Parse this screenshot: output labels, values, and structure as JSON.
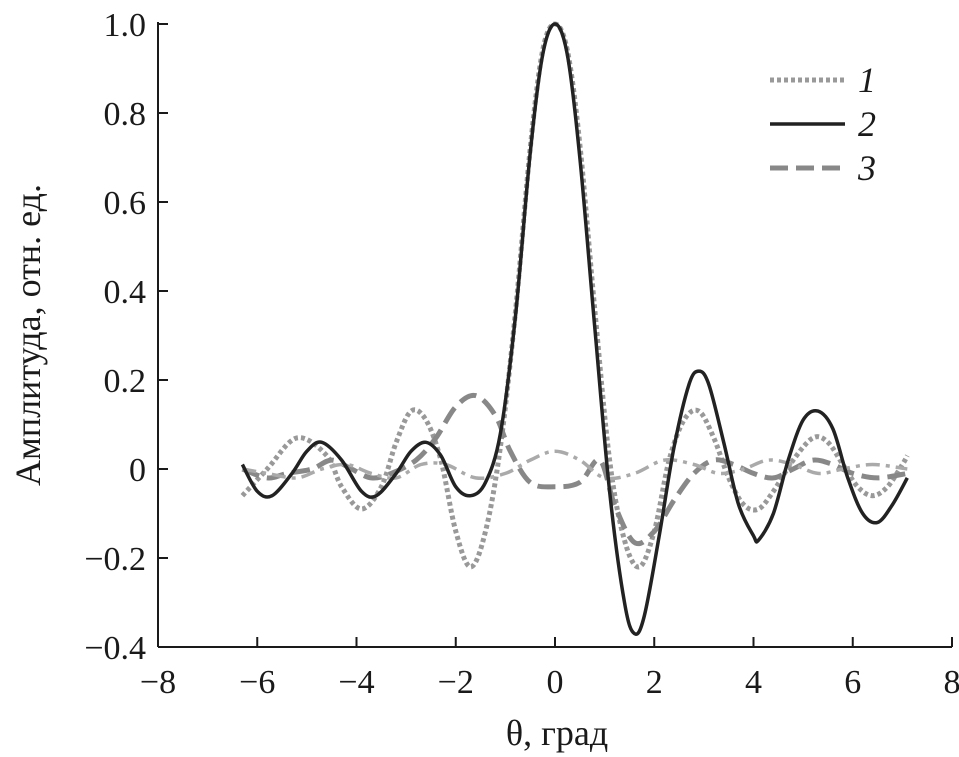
{
  "chart_data": {
    "type": "line",
    "title": "",
    "xlabel": "θ, град",
    "ylabel": "Амплитуда, отн. ед.",
    "xlim": [
      -8,
      8
    ],
    "ylim": [
      -0.4,
      1.0
    ],
    "xticks": [
      -8,
      -6,
      -4,
      -2,
      0,
      2,
      4,
      6,
      8
    ],
    "xtick_labels": [
      "−8",
      "−6",
      "−4",
      "−2",
      "0",
      "2",
      "4",
      "6",
      "8"
    ],
    "yticks": [
      -0.4,
      -0.2,
      0,
      0.2,
      0.4,
      0.6,
      0.8,
      1.0
    ],
    "ytick_labels": [
      "−0.4",
      "−0.2",
      "0",
      "0.2",
      "0.4",
      "0.6",
      "0.8",
      "1.0"
    ],
    "grid": false,
    "legend_position": "top-right",
    "series": [
      {
        "name": "1",
        "style": "dotted",
        "color": "#999999",
        "points": [
          [
            -6.3,
            -0.06
          ],
          [
            -5.8,
            0.0
          ],
          [
            -5.2,
            0.07
          ],
          [
            -4.6,
            0.03
          ],
          [
            -4.3,
            -0.04
          ],
          [
            -3.9,
            -0.09
          ],
          [
            -3.5,
            -0.04
          ],
          [
            -3.2,
            0.06
          ],
          [
            -2.9,
            0.13
          ],
          [
            -2.6,
            0.11
          ],
          [
            -2.3,
            0.02
          ],
          [
            -2.0,
            -0.14
          ],
          [
            -1.7,
            -0.22
          ],
          [
            -1.4,
            -0.14
          ],
          [
            -1.1,
            0.05
          ],
          [
            -0.8,
            0.35
          ],
          [
            -0.5,
            0.72
          ],
          [
            -0.25,
            0.94
          ],
          [
            0.0,
            1.0
          ],
          [
            0.25,
            0.94
          ],
          [
            0.5,
            0.73
          ],
          [
            0.8,
            0.36
          ],
          [
            1.1,
            0.02
          ],
          [
            1.4,
            -0.16
          ],
          [
            1.7,
            -0.22
          ],
          [
            2.0,
            -0.14
          ],
          [
            2.3,
            0.02
          ],
          [
            2.6,
            0.11
          ],
          [
            2.9,
            0.13
          ],
          [
            3.2,
            0.07
          ],
          [
            3.5,
            -0.02
          ],
          [
            3.8,
            -0.08
          ],
          [
            4.1,
            -0.09
          ],
          [
            4.4,
            -0.05
          ],
          [
            4.8,
            0.02
          ],
          [
            5.2,
            0.07
          ],
          [
            5.5,
            0.06
          ],
          [
            5.8,
            0.01
          ],
          [
            6.1,
            -0.04
          ],
          [
            6.4,
            -0.06
          ],
          [
            6.7,
            -0.04
          ],
          [
            7.0,
            0.01
          ],
          [
            7.1,
            0.03
          ]
        ]
      },
      {
        "name": "2",
        "style": "solid",
        "color": "#222222",
        "points": [
          [
            -6.3,
            0.01
          ],
          [
            -6.0,
            -0.05
          ],
          [
            -5.7,
            -0.06
          ],
          [
            -5.3,
            -0.01
          ],
          [
            -5.0,
            0.04
          ],
          [
            -4.7,
            0.06
          ],
          [
            -4.3,
            0.02
          ],
          [
            -3.9,
            -0.05
          ],
          [
            -3.6,
            -0.06
          ],
          [
            -3.2,
            -0.01
          ],
          [
            -2.9,
            0.04
          ],
          [
            -2.6,
            0.06
          ],
          [
            -2.3,
            0.03
          ],
          [
            -2.0,
            -0.04
          ],
          [
            -1.7,
            -0.06
          ],
          [
            -1.4,
            -0.03
          ],
          [
            -1.1,
            0.08
          ],
          [
            -0.8,
            0.34
          ],
          [
            -0.5,
            0.71
          ],
          [
            -0.25,
            0.93
          ],
          [
            0.0,
            1.0
          ],
          [
            0.25,
            0.93
          ],
          [
            0.5,
            0.7
          ],
          [
            0.8,
            0.32
          ],
          [
            1.1,
            -0.05
          ],
          [
            1.4,
            -0.3
          ],
          [
            1.6,
            -0.37
          ],
          [
            1.8,
            -0.33
          ],
          [
            2.1,
            -0.15
          ],
          [
            2.4,
            0.05
          ],
          [
            2.7,
            0.19
          ],
          [
            2.9,
            0.22
          ],
          [
            3.1,
            0.19
          ],
          [
            3.4,
            0.06
          ],
          [
            3.7,
            -0.08
          ],
          [
            4.0,
            -0.15
          ],
          [
            4.1,
            -0.16
          ],
          [
            4.4,
            -0.1
          ],
          [
            4.7,
            0.02
          ],
          [
            5.0,
            0.11
          ],
          [
            5.3,
            0.13
          ],
          [
            5.6,
            0.09
          ],
          [
            5.9,
            -0.02
          ],
          [
            6.2,
            -0.1
          ],
          [
            6.5,
            -0.12
          ],
          [
            6.8,
            -0.08
          ],
          [
            7.1,
            -0.02
          ]
        ]
      },
      {
        "name": "3",
        "style": "dashed",
        "color": "#888888",
        "points": [
          [
            -6.3,
            0.0
          ],
          [
            -5.8,
            -0.02
          ],
          [
            -5.4,
            -0.01
          ],
          [
            -4.9,
            0.0
          ],
          [
            -4.5,
            0.02
          ],
          [
            -4.1,
            0.0
          ],
          [
            -3.7,
            -0.02
          ],
          [
            -3.3,
            -0.01
          ],
          [
            -2.8,
            0.02
          ],
          [
            -2.4,
            0.07
          ],
          [
            -2.0,
            0.14
          ],
          [
            -1.6,
            0.165
          ],
          [
            -1.2,
            0.12
          ],
          [
            -0.9,
            0.04
          ],
          [
            -0.5,
            -0.03
          ],
          [
            0.0,
            -0.04
          ],
          [
            0.5,
            -0.03
          ],
          [
            0.9,
            0.02
          ],
          [
            1.2,
            -0.08
          ],
          [
            1.6,
            -0.165
          ],
          [
            2.0,
            -0.14
          ],
          [
            2.4,
            -0.07
          ],
          [
            2.8,
            -0.01
          ],
          [
            3.2,
            0.02
          ],
          [
            3.6,
            0.01
          ],
          [
            4.0,
            -0.01
          ],
          [
            4.4,
            -0.02
          ],
          [
            4.8,
            0.0
          ],
          [
            5.2,
            0.02
          ],
          [
            5.6,
            0.01
          ],
          [
            6.0,
            -0.01
          ],
          [
            6.5,
            -0.02
          ],
          [
            7.1,
            -0.01
          ]
        ]
      },
      {
        "name": "",
        "style": "dashdot",
        "color": "#aaaaaa",
        "points": [
          [
            -6.3,
            0.0
          ],
          [
            -5.8,
            -0.01
          ],
          [
            -5.2,
            -0.02
          ],
          [
            -4.7,
            0.0
          ],
          [
            -4.2,
            0.01
          ],
          [
            -3.7,
            -0.01
          ],
          [
            -3.2,
            -0.02
          ],
          [
            -2.7,
            0.01
          ],
          [
            -2.2,
            0.01
          ],
          [
            -1.6,
            -0.02
          ],
          [
            -1.0,
            -0.01
          ],
          [
            -0.5,
            0.02
          ],
          [
            0.0,
            0.04
          ],
          [
            0.5,
            0.02
          ],
          [
            1.0,
            -0.02
          ],
          [
            1.6,
            -0.01
          ],
          [
            2.2,
            0.02
          ],
          [
            2.8,
            0.01
          ],
          [
            3.3,
            -0.01
          ],
          [
            3.8,
            0.0
          ],
          [
            4.3,
            0.02
          ],
          [
            4.8,
            0.01
          ],
          [
            5.3,
            -0.01
          ],
          [
            5.8,
            0.0
          ],
          [
            6.4,
            0.01
          ],
          [
            7.1,
            0.0
          ]
        ]
      }
    ]
  }
}
